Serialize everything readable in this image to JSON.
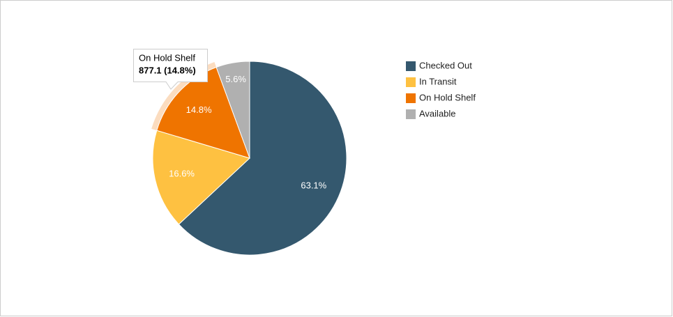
{
  "chart_data": {
    "type": "pie",
    "categories": [
      "Checked Out",
      "In Transit",
      "On Hold Shelf",
      "Available"
    ],
    "values": [
      63.1,
      16.6,
      14.8,
      5.6
    ],
    "value_labels": [
      "63.1%",
      "16.6%",
      "14.8%",
      "5.6%"
    ],
    "colors": [
      "#34586e",
      "#fec141",
      "#ef7400",
      "#b0b0b0"
    ],
    "legend": "right",
    "tooltip": {
      "title": "On Hold Shelf",
      "text": "877.1 (14.8%)"
    }
  }
}
